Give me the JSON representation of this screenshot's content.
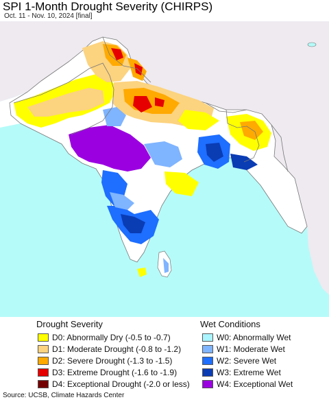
{
  "header": {
    "title": "SPI 1-Month Drought Severity (CHIRPS)",
    "subtitle": "Oct. 11 - Nov. 10, 2024 [final]"
  },
  "map": {
    "colors": {
      "ocean": "#b5fbf9",
      "land_outside": "#eeeaf0",
      "land_normal": "#ffffff",
      "border": "#777777"
    }
  },
  "legend": {
    "drought": {
      "title": "Drought Severity",
      "items": [
        {
          "label": "D0: Abnormally Dry (-0.5 to -0.7)",
          "color": "#ffff00"
        },
        {
          "label": "D1: Moderate Drought (-0.8 to -1.2)",
          "color": "#fcd37f"
        },
        {
          "label": "D2: Severe Drought (-1.3 to -1.5)",
          "color": "#ffaa00"
        },
        {
          "label": "D3: Extreme Drought (-1.6 to -1.9)",
          "color": "#e60000"
        },
        {
          "label": "D4: Exceptional Drought (-2.0 or less)",
          "color": "#730000"
        }
      ]
    },
    "wet": {
      "title": "Wet Conditions",
      "items": [
        {
          "label": "W0: Abnormally Wet",
          "color": "#aaf5ff"
        },
        {
          "label": "W1: Moderate Wet",
          "color": "#7fb4ff"
        },
        {
          "label": "W2: Severe Wet",
          "color": "#1e6eff"
        },
        {
          "label": "W3: Extreme Wet",
          "color": "#0a3cb4"
        },
        {
          "label": "W4: Exceptional Wet",
          "color": "#9b00e1"
        }
      ]
    }
  },
  "footer": {
    "source": "Source: UCSB, Climate Hazards Center"
  }
}
